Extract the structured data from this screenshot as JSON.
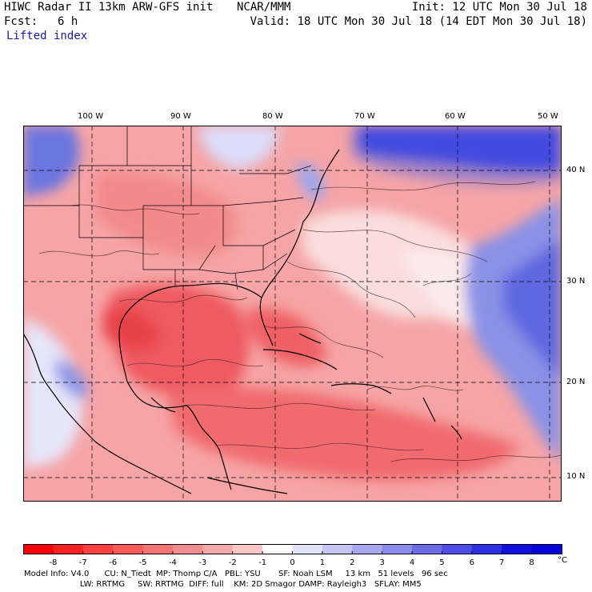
{
  "header": {
    "title_left": "HIWC Radar II 13km ARW-GFS init",
    "title_mid": "NCAR/MMM",
    "init": "Init: 12 UTC Mon 30 Jul 18",
    "fcst_label": "Fcst:",
    "fcst_value": "6 h",
    "valid": "Valid: 18 UTC Mon 30 Jul 18 (14 EDT Mon 30 Jul 18)",
    "field": "Lifted index"
  },
  "map": {
    "longitude_labels": [
      "100 W",
      "90 W",
      "80 W",
      "70 W",
      "60 W",
      "50 W"
    ],
    "latitude_labels": [
      "40 N",
      "30 N",
      "20 N",
      "10 N"
    ],
    "colors": {
      "strong_negative": "#e8202a",
      "negative": "#f26b6e",
      "weak_negative": "#f7a8aa",
      "near_zero": "#fde4e4",
      "weak_positive": "#c8cdf5",
      "positive": "#6f78e0",
      "strong_positive": "#1f1fe6"
    }
  },
  "colorbar": {
    "labels": [
      "-8",
      "-7",
      "-6",
      "-5",
      "-4",
      "-3",
      "-2",
      "-1",
      "0",
      "1",
      "2",
      "3",
      "4",
      "5",
      "6",
      "7",
      "8"
    ],
    "unit": "°C",
    "colors": [
      "#ff0000",
      "#ff2020",
      "#ff4040",
      "#fb5a5a",
      "#f77474",
      "#f38e8e",
      "#f5a8a8",
      "#fac6c6",
      "#ffffff",
      "#e2e2fb",
      "#c6c6f6",
      "#a8a8f2",
      "#8c8cee",
      "#6c6ce9",
      "#4e4ee6",
      "#3030e3",
      "#1010e0",
      "#0000d8"
    ]
  },
  "footer": {
    "line1": "Model Info: V4.0      CU: N_Tiedt  MP: Thomp C/A   PBL: YSU       SF: Noah LSM     13 km   51 levels   96 sec",
    "line2": "                      LW: RRTMG     SW: RRTMG  DIFF: full    KM: 2D Smagor DAMP: Rayleigh3   SFLAY: MM5"
  }
}
